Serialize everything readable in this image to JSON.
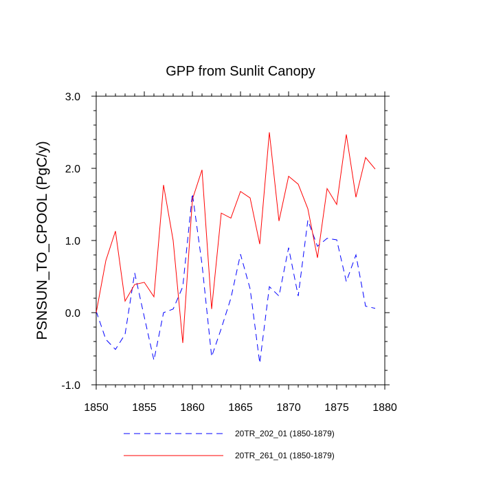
{
  "chart_data": {
    "type": "line",
    "title": "GPP from Sunlit Canopy",
    "xlabel": "",
    "ylabel": "PSNSUN_TO_CPOOL  (PgC/y)",
    "xlim": [
      1850,
      1880
    ],
    "ylim": [
      -1.0,
      3.0
    ],
    "x_ticks": [
      1850,
      1855,
      1860,
      1865,
      1870,
      1875,
      1880
    ],
    "y_ticks": [
      -1.0,
      0.0,
      1.0,
      2.0,
      3.0
    ],
    "x_tick_labels": [
      "1850",
      "1855",
      "1860",
      "1865",
      "1870",
      "1875",
      "1880"
    ],
    "y_tick_labels": [
      "-1.0",
      "0.0",
      "1.0",
      "2.0",
      "3.0"
    ],
    "x": [
      1850,
      1851,
      1852,
      1853,
      1854,
      1855,
      1856,
      1857,
      1858,
      1859,
      1860,
      1861,
      1862,
      1863,
      1864,
      1865,
      1866,
      1867,
      1868,
      1869,
      1870,
      1871,
      1872,
      1873,
      1874,
      1875,
      1876,
      1877,
      1878,
      1879
    ],
    "series": [
      {
        "name": "20TR_202_01 (1850-1879)",
        "color": "#0000ff",
        "dash": "dashed",
        "values": [
          0.02,
          -0.37,
          -0.51,
          -0.3,
          0.55,
          -0.06,
          -0.66,
          0.0,
          0.05,
          0.36,
          1.65,
          0.67,
          -0.61,
          -0.22,
          0.2,
          0.81,
          0.33,
          -0.7,
          0.36,
          0.23,
          0.9,
          0.23,
          1.28,
          0.92,
          1.03,
          1.01,
          0.43,
          0.8,
          0.09,
          0.06
        ]
      },
      {
        "name": "20TR_261_01 (1850-1879)",
        "color": "#ff0000",
        "dash": "solid",
        "values": [
          0.0,
          0.72,
          1.13,
          0.16,
          0.39,
          0.42,
          0.22,
          1.77,
          1.0,
          -0.42,
          1.57,
          1.98,
          0.05,
          1.38,
          1.31,
          1.68,
          1.59,
          0.95,
          2.5,
          1.27,
          1.89,
          1.78,
          1.44,
          0.76,
          1.72,
          1.5,
          2.47,
          1.6,
          2.15,
          1.99
        ]
      }
    ],
    "legend_position": "bottom"
  }
}
